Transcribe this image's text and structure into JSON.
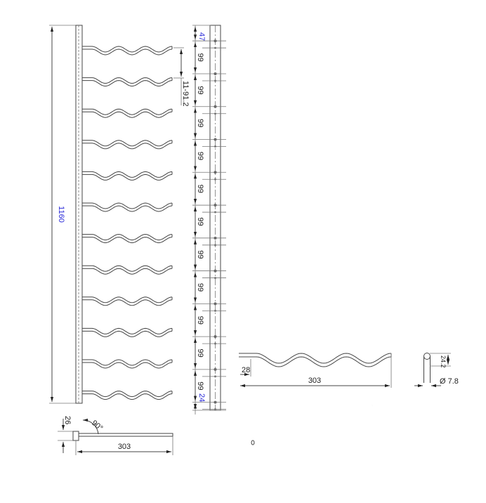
{
  "drawing": {
    "overall_height": "1160",
    "top_offset": "47",
    "spacing": "99",
    "spacing_count": 11,
    "bottom_offset": "24",
    "rod_pitch": "11-91.2",
    "rod_count": 12,
    "side_height": "26",
    "side_angle": "90°",
    "side_length": "303",
    "rod_length": "303",
    "rod_start": "28",
    "rod_wave_height": "24.2",
    "rod_diameter": "Ø 7.8",
    "highlight_color": "#2a2ad8",
    "line_color": "#444444"
  }
}
